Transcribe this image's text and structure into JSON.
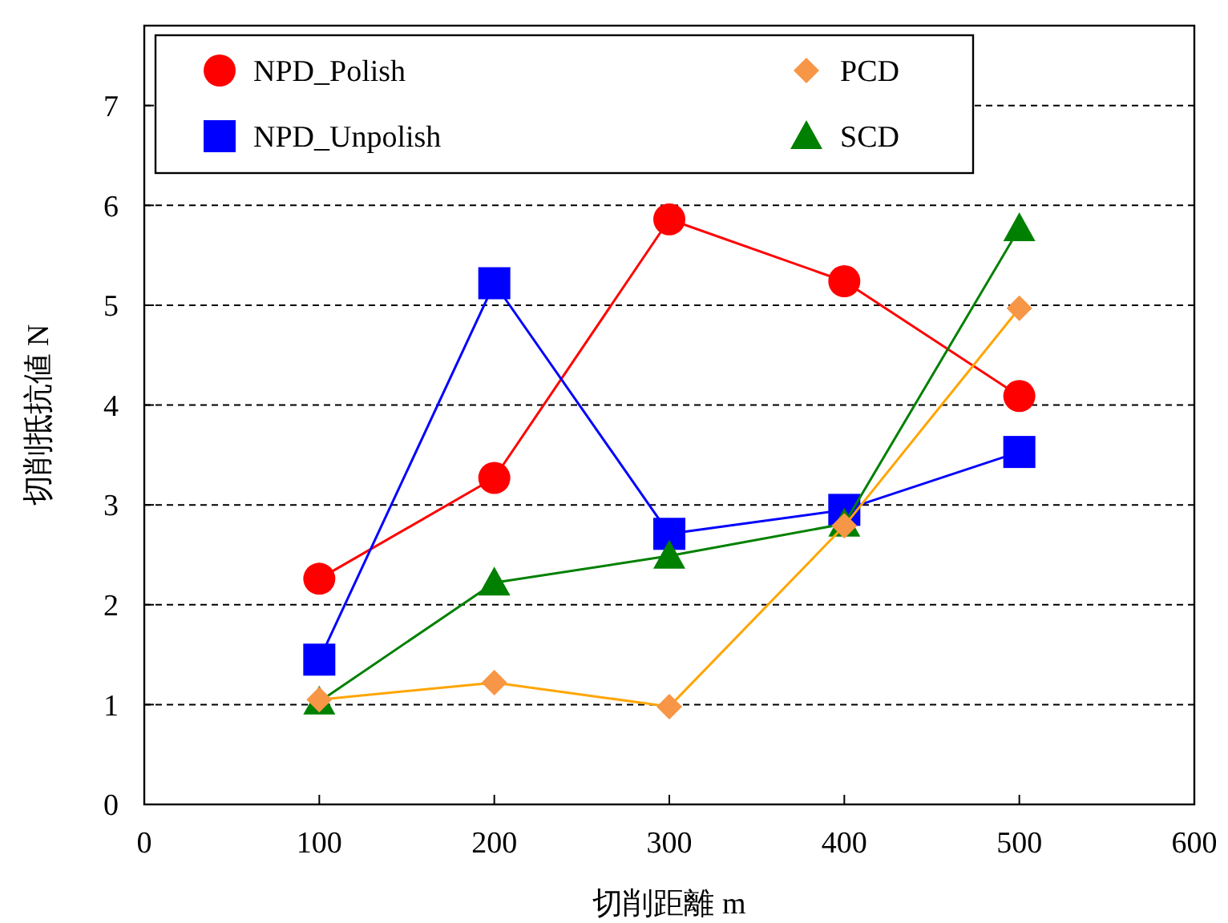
{
  "chart_data": {
    "type": "line",
    "xlabel": "切削距離 m",
    "ylabel": "切削抵抗値 N",
    "x": [
      100,
      200,
      300,
      400,
      500
    ],
    "series": [
      {
        "name": "NPD_Polish",
        "color": "#ff0000",
        "marker": "circle",
        "values": [
          2.26,
          3.27,
          5.86,
          5.24,
          4.09
        ]
      },
      {
        "name": "NPD_Unpolish",
        "color": "#0000ff",
        "marker": "square",
        "values": [
          1.45,
          5.22,
          2.71,
          2.95,
          3.53
        ]
      },
      {
        "name": "PCD",
        "color": "#ffa500",
        "marker": "diamond",
        "values": [
          1.05,
          1.22,
          0.98,
          2.79,
          4.97
        ]
      },
      {
        "name": "SCD",
        "color": "#008000",
        "marker": "triangle",
        "values": [
          1.03,
          2.22,
          2.49,
          2.81,
          5.77
        ]
      }
    ],
    "xlim": [
      0,
      600
    ],
    "xticks": [
      0,
      100,
      200,
      300,
      400,
      500,
      600
    ],
    "ylim": [
      0,
      7.8
    ],
    "yticks": [
      0,
      1,
      2,
      3,
      4,
      5,
      6,
      7
    ],
    "grid": "y",
    "legend": "top left",
    "line_style": "solid"
  }
}
